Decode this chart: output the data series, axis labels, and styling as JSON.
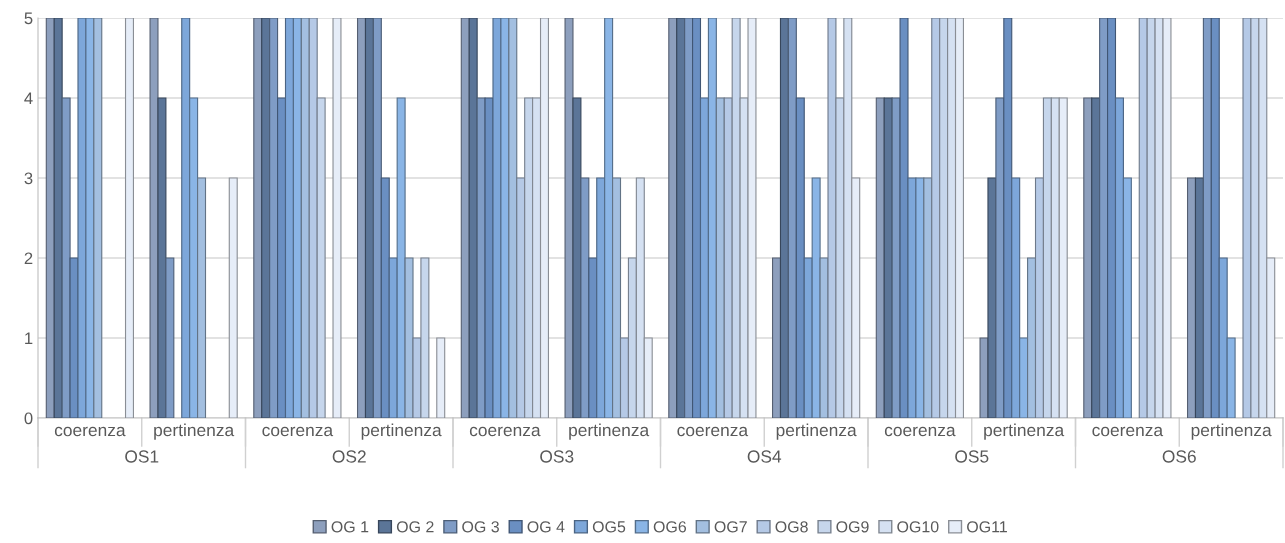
{
  "chart_data": {
    "type": "bar",
    "categories": [
      "coerenza",
      "pertinenza",
      "coerenza",
      "pertinenza",
      "coerenza",
      "pertinenza",
      "coerenza",
      "pertinenza",
      "coerenza",
      "pertinenza",
      "coerenza",
      "pertinenza"
    ],
    "annotations": [
      "OS1",
      "OS2",
      "OS3",
      "OS4",
      "OS5",
      "OS6"
    ],
    "series": [
      {
        "name": "OG 1",
        "color": "#8d9fbd",
        "values": [
          5,
          5,
          5,
          5,
          5,
          5,
          5,
          2,
          4,
          1,
          4,
          3
        ]
      },
      {
        "name": "OG 2",
        "color": "#5b7598",
        "values": [
          5,
          4,
          5,
          5,
          5,
          4,
          5,
          5,
          4,
          3,
          4,
          3
        ]
      },
      {
        "name": "OG 3",
        "color": "#7f9cc6",
        "values": [
          4,
          2,
          5,
          5,
          4,
          3,
          5,
          5,
          4,
          4,
          5,
          5
        ]
      },
      {
        "name": "OG 4",
        "color": "#6a8fc2",
        "values": [
          2,
          0,
          4,
          3,
          4,
          2,
          5,
          4,
          5,
          5,
          5,
          5
        ]
      },
      {
        "name": "OG5",
        "color": "#7da7da",
        "values": [
          5,
          5,
          5,
          2,
          5,
          3,
          4,
          2,
          3,
          3,
          4,
          2
        ]
      },
      {
        "name": "OG6",
        "color": "#8ab5e6",
        "values": [
          5,
          4,
          5,
          4,
          5,
          5,
          5,
          3,
          3,
          1,
          3,
          1
        ]
      },
      {
        "name": "OG7",
        "color": "#a3bfe0",
        "values": [
          5,
          3,
          5,
          2,
          5,
          3,
          4,
          2,
          3,
          2,
          0,
          0
        ]
      },
      {
        "name": "OG8",
        "color": "#b5c9e6",
        "values": [
          0,
          0,
          5,
          1,
          3,
          1,
          4,
          5,
          5,
          3,
          5,
          5
        ]
      },
      {
        "name": "OG9",
        "color": "#c6d6ec",
        "values": [
          0,
          0,
          4,
          2,
          4,
          2,
          5,
          4,
          5,
          4,
          5,
          5
        ]
      },
      {
        "name": "OG10",
        "color": "#d5e1f2",
        "values": [
          0,
          0,
          0,
          0,
          4,
          3,
          4,
          5,
          5,
          4,
          5,
          5
        ]
      },
      {
        "name": "OG11",
        "color": "#e6edf8",
        "values": [
          5,
          3,
          5,
          1,
          5,
          1,
          5,
          3,
          5,
          4,
          5,
          2
        ]
      }
    ],
    "ylim": [
      0,
      5
    ],
    "yticks": [
      0,
      1,
      2,
      3,
      4,
      5
    ],
    "grid": "y",
    "legend": "bottom"
  }
}
